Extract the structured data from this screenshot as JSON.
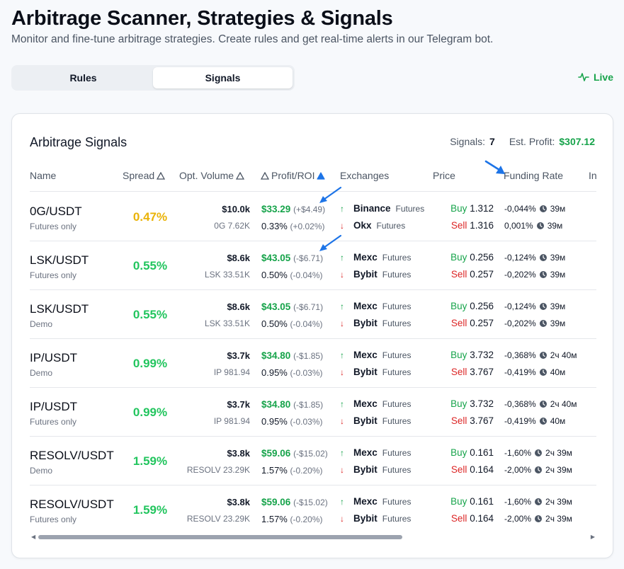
{
  "header": {
    "title": "Arbitrage Scanner, Strategies & Signals",
    "subtitle": "Monitor and fine-tune arbitrage strategies. Create rules and get real-time alerts in our Telegram bot."
  },
  "tabs": [
    {
      "label": "Rules",
      "active": false
    },
    {
      "label": "Signals",
      "active": true
    }
  ],
  "live_label": "Live",
  "card": {
    "title": "Arbitrage Signals",
    "signals_label": "Signals:",
    "signals_count": "7",
    "profit_label": "Est. Profit:",
    "profit_value": "$307.12"
  },
  "columns": {
    "name": "Name",
    "spread": "Spread",
    "volume": "Opt. Volume",
    "profit": "Profit/ROI",
    "exchanges": "Exchanges",
    "price": "Price",
    "funding": "Funding Rate",
    "next": "In"
  },
  "rows": [
    {
      "pair": "0G/USDT",
      "type": "Futures only",
      "spread": "0.47%",
      "spread_color": "amber",
      "volume": "$10.0k",
      "volume_sub": "0G 7.62K",
      "profit": "$33.29",
      "profit_delta": "(+$4.49)",
      "roi": "0.33%",
      "roi_delta": "(+0.02%)",
      "buy_ex": "Binance",
      "buy_mkt": "Futures",
      "sell_ex": "Okx",
      "sell_mkt": "Futures",
      "buy_label": "Buy",
      "buy_price": "1.312",
      "sell_label": "Sell",
      "sell_price": "1.316",
      "fund1": "-0,044%",
      "fund1_time": "39м",
      "fund2": "0,001%",
      "fund2_time": "39м"
    },
    {
      "pair": "LSK/USDT",
      "type": "Futures only",
      "spread": "0.55%",
      "spread_color": "green",
      "volume": "$8.6k",
      "volume_sub": "LSK 33.51K",
      "profit": "$43.05",
      "profit_delta": "(-$6.71)",
      "roi": "0.50%",
      "roi_delta": "(-0.04%)",
      "buy_ex": "Mexc",
      "buy_mkt": "Futures",
      "sell_ex": "Bybit",
      "sell_mkt": "Futures",
      "buy_label": "Buy",
      "buy_price": "0.256",
      "sell_label": "Sell",
      "sell_price": "0.257",
      "fund1": "-0,124%",
      "fund1_time": "39м",
      "fund2": "-0,202%",
      "fund2_time": "39м"
    },
    {
      "pair": "LSK/USDT",
      "type": "Demo",
      "spread": "0.55%",
      "spread_color": "green",
      "volume": "$8.6k",
      "volume_sub": "LSK 33.51K",
      "profit": "$43.05",
      "profit_delta": "(-$6.71)",
      "roi": "0.50%",
      "roi_delta": "(-0.04%)",
      "buy_ex": "Mexc",
      "buy_mkt": "Futures",
      "sell_ex": "Bybit",
      "sell_mkt": "Futures",
      "buy_label": "Buy",
      "buy_price": "0.256",
      "sell_label": "Sell",
      "sell_price": "0.257",
      "fund1": "-0,124%",
      "fund1_time": "39м",
      "fund2": "-0,202%",
      "fund2_time": "39м"
    },
    {
      "pair": "IP/USDT",
      "type": "Demo",
      "spread": "0.99%",
      "spread_color": "green",
      "volume": "$3.7k",
      "volume_sub": "IP 981.94",
      "profit": "$34.80",
      "profit_delta": "(-$1.85)",
      "roi": "0.95%",
      "roi_delta": "(-0.03%)",
      "buy_ex": "Mexc",
      "buy_mkt": "Futures",
      "sell_ex": "Bybit",
      "sell_mkt": "Futures",
      "buy_label": "Buy",
      "buy_price": "3.732",
      "sell_label": "Sell",
      "sell_price": "3.767",
      "fund1": "-0,368%",
      "fund1_time": "2ч 40м",
      "fund2": "-0,419%",
      "fund2_time": "40м"
    },
    {
      "pair": "IP/USDT",
      "type": "Futures only",
      "spread": "0.99%",
      "spread_color": "green",
      "volume": "$3.7k",
      "volume_sub": "IP 981.94",
      "profit": "$34.80",
      "profit_delta": "(-$1.85)",
      "roi": "0.95%",
      "roi_delta": "(-0.03%)",
      "buy_ex": "Mexc",
      "buy_mkt": "Futures",
      "sell_ex": "Bybit",
      "sell_mkt": "Futures",
      "buy_label": "Buy",
      "buy_price": "3.732",
      "sell_label": "Sell",
      "sell_price": "3.767",
      "fund1": "-0,368%",
      "fund1_time": "2ч 40м",
      "fund2": "-0,419%",
      "fund2_time": "40м"
    },
    {
      "pair": "RESOLV/USDT",
      "type": "Demo",
      "spread": "1.59%",
      "spread_color": "green",
      "volume": "$3.8k",
      "volume_sub": "RESOLV 23.29K",
      "profit": "$59.06",
      "profit_delta": "(-$15.02)",
      "roi": "1.57%",
      "roi_delta": "(-0.20%)",
      "buy_ex": "Mexc",
      "buy_mkt": "Futures",
      "sell_ex": "Bybit",
      "sell_mkt": "Futures",
      "buy_label": "Buy",
      "buy_price": "0.161",
      "sell_label": "Sell",
      "sell_price": "0.164",
      "fund1": "-1,60%",
      "fund1_time": "2ч 39м",
      "fund2": "-2,00%",
      "fund2_time": "2ч 39м"
    },
    {
      "pair": "RESOLV/USDT",
      "type": "Futures only",
      "spread": "1.59%",
      "spread_color": "green",
      "volume": "$3.8k",
      "volume_sub": "RESOLV 23.29K",
      "profit": "$59.06",
      "profit_delta": "(-$15.02)",
      "roi": "1.57%",
      "roi_delta": "(-0.20%)",
      "buy_ex": "Mexc",
      "buy_mkt": "Futures",
      "sell_ex": "Bybit",
      "sell_mkt": "Futures",
      "buy_label": "Buy",
      "buy_price": "0.161",
      "sell_label": "Sell",
      "sell_price": "0.164",
      "fund1": "-1,60%",
      "fund1_time": "2ч 39м",
      "fund2": "-2,00%",
      "fund2_time": "2ч 39м"
    }
  ],
  "colors": {
    "green": "#16a34a",
    "spread_green": "#22c55e",
    "amber": "#eab308",
    "red": "#dc2626",
    "annotation_blue": "#1d74e7"
  }
}
